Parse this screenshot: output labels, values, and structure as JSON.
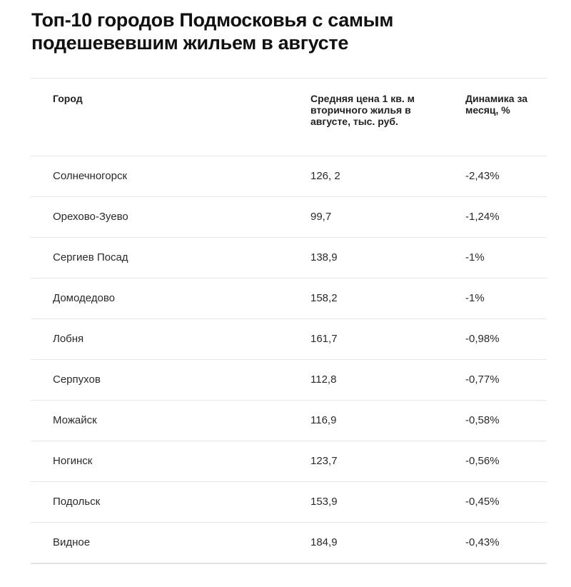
{
  "title": "Топ-10 городов Подмосковья с самым подешевевшим жильем в августе",
  "table": {
    "headers": {
      "city": "Город",
      "price": "Средняя цена 1 кв. м вторичного жилья в августе, тыс. руб.",
      "dynamics": "Динамика за месяц, %"
    },
    "rows": [
      {
        "city": "Солнечногорск",
        "price": "126, 2",
        "dynamics": "-2,43%"
      },
      {
        "city": "Орехово-Зуево",
        "price": "99,7",
        "dynamics": "-1,24%"
      },
      {
        "city": "Сергиев Посад",
        "price": "138,9",
        "dynamics": "-1%"
      },
      {
        "city": "Домодедово",
        "price": "158,2",
        "dynamics": "-1%"
      },
      {
        "city": "Лобня",
        "price": "161,7",
        "dynamics": "-0,98%"
      },
      {
        "city": "Серпухов",
        "price": "112,8",
        "dynamics": "-0,77%"
      },
      {
        "city": "Можайск",
        "price": "116,9",
        "dynamics": "-0,58%"
      },
      {
        "city": "Ногинск",
        "price": "123,7",
        "dynamics": "-0,56%"
      },
      {
        "city": "Подольск",
        "price": "153,9",
        "dynamics": "-0,45%"
      },
      {
        "city": "Видное",
        "price": "184,9",
        "dynamics": "-0,43%"
      }
    ]
  }
}
